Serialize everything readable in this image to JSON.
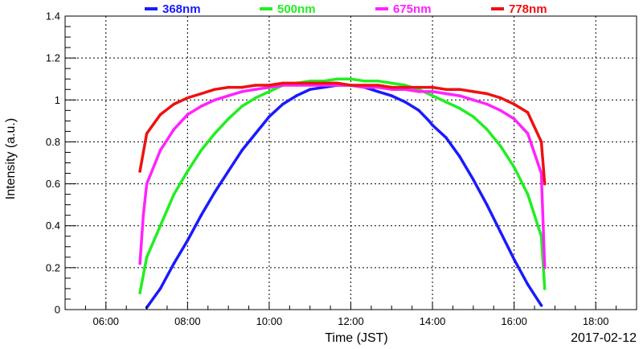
{
  "chart_data": {
    "type": "scatter",
    "xlabel": "Time (JST)",
    "ylabel": "Intensity (a.u.)",
    "date_label": "2017-02-12",
    "xlim": [
      "05:00",
      "19:00"
    ],
    "ylim": [
      0,
      1.4
    ],
    "x_ticks": [
      "06:00",
      "08:00",
      "10:00",
      "12:00",
      "14:00",
      "16:00",
      "18:00"
    ],
    "y_ticks": [
      "0",
      "0.2",
      "0.4",
      "0.6",
      "0.8",
      "1",
      "1.2",
      "1.4"
    ],
    "grid": true,
    "legend_position": "top",
    "series": [
      {
        "name": "368nm",
        "color": "#1a1aff",
        "x": [
          "07:00",
          "07:20",
          "07:40",
          "08:00",
          "08:20",
          "08:40",
          "09:00",
          "09:20",
          "09:40",
          "10:00",
          "10:20",
          "10:40",
          "11:00",
          "11:20",
          "11:40",
          "12:00",
          "12:20",
          "12:40",
          "13:00",
          "13:20",
          "13:40",
          "13:55",
          "14:00",
          "14:20",
          "14:40",
          "15:00",
          "15:20",
          "15:40",
          "16:00",
          "16:20",
          "16:40"
        ],
        "values": [
          0.01,
          0.1,
          0.22,
          0.33,
          0.45,
          0.56,
          0.66,
          0.76,
          0.84,
          0.92,
          0.98,
          1.02,
          1.05,
          1.06,
          1.07,
          1.07,
          1.06,
          1.04,
          1.02,
          0.99,
          0.95,
          0.9,
          0.88,
          0.82,
          0.73,
          0.62,
          0.5,
          0.37,
          0.24,
          0.12,
          0.02
        ]
      },
      {
        "name": "500nm",
        "color": "#22ee22",
        "x": [
          "06:50",
          "07:00",
          "07:20",
          "07:40",
          "08:00",
          "08:20",
          "08:40",
          "09:00",
          "09:20",
          "09:40",
          "10:00",
          "10:20",
          "10:40",
          "11:00",
          "11:20",
          "11:40",
          "12:00",
          "12:20",
          "12:40",
          "13:00",
          "13:20",
          "13:40",
          "14:00",
          "14:20",
          "14:40",
          "15:00",
          "15:20",
          "15:40",
          "16:00",
          "16:20",
          "16:40",
          "16:45"
        ],
        "values": [
          0.08,
          0.25,
          0.4,
          0.55,
          0.66,
          0.76,
          0.84,
          0.91,
          0.97,
          1.01,
          1.04,
          1.07,
          1.08,
          1.09,
          1.09,
          1.1,
          1.1,
          1.09,
          1.09,
          1.08,
          1.07,
          1.05,
          1.02,
          0.99,
          0.96,
          0.92,
          0.86,
          0.78,
          0.68,
          0.55,
          0.35,
          0.1
        ]
      },
      {
        "name": "675nm",
        "color": "#ff22ff",
        "x": [
          "06:50",
          "06:55",
          "07:00",
          "07:20",
          "07:40",
          "08:00",
          "08:20",
          "08:40",
          "09:00",
          "09:20",
          "09:40",
          "10:00",
          "10:20",
          "10:40",
          "11:00",
          "11:20",
          "11:40",
          "12:00",
          "12:20",
          "12:40",
          "13:00",
          "13:20",
          "13:40",
          "14:00",
          "14:20",
          "14:40",
          "15:00",
          "15:20",
          "15:40",
          "16:00",
          "16:20",
          "16:40",
          "16:45"
        ],
        "values": [
          0.22,
          0.45,
          0.6,
          0.76,
          0.86,
          0.93,
          0.97,
          1.0,
          1.02,
          1.04,
          1.05,
          1.06,
          1.07,
          1.07,
          1.07,
          1.07,
          1.07,
          1.07,
          1.06,
          1.06,
          1.05,
          1.05,
          1.04,
          1.04,
          1.03,
          1.02,
          1.0,
          0.98,
          0.95,
          0.91,
          0.84,
          0.65,
          0.2
        ]
      },
      {
        "name": "778nm",
        "color": "#ee1111",
        "x": [
          "06:50",
          "06:55",
          "07:00",
          "07:20",
          "07:40",
          "08:00",
          "08:20",
          "08:40",
          "09:00",
          "09:20",
          "09:40",
          "10:00",
          "10:20",
          "10:40",
          "11:00",
          "11:20",
          "11:40",
          "12:00",
          "12:20",
          "12:40",
          "13:00",
          "13:20",
          "13:40",
          "14:00",
          "14:20",
          "14:40",
          "15:00",
          "15:20",
          "15:40",
          "16:00",
          "16:20",
          "16:40",
          "16:45"
        ],
        "values": [
          0.66,
          0.75,
          0.84,
          0.93,
          0.98,
          1.01,
          1.03,
          1.05,
          1.06,
          1.06,
          1.07,
          1.07,
          1.08,
          1.08,
          1.08,
          1.08,
          1.08,
          1.07,
          1.07,
          1.07,
          1.06,
          1.06,
          1.06,
          1.06,
          1.05,
          1.05,
          1.04,
          1.03,
          1.01,
          0.98,
          0.94,
          0.8,
          0.6
        ]
      }
    ]
  }
}
